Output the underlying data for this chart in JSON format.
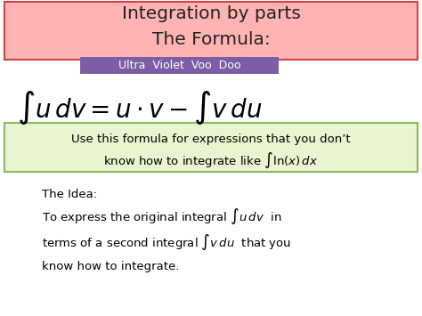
{
  "title_line1": "Integration by parts",
  "title_line2": "The Formula:",
  "title_bg_color": "#ffb3b3",
  "title_border_color": "#cc4444",
  "subtitle_text": "Ultra  Violet  Voo  Doo",
  "subtitle_bg_color": "#7b5ea7",
  "subtitle_text_color": "#ffffff",
  "formula_latex": "$\\int u\\, dv = u \\cdot v - \\int v\\, du$",
  "box_text_line1": "Use this formula for expressions that you don’t",
  "box_text_line2": "know how to integrate like ",
  "box_formula": "$\\int \\ln(x)\\, dx$",
  "box_bg_color": "#e8f5d0",
  "box_border_color": "#8aba5a",
  "idea_title": "The Idea:",
  "idea_line1": "To express the original integral $\\int u\\, dv$  in",
  "idea_line2": "terms of a second integral $\\int v\\, du$  that you",
  "idea_line3": "know how to integrate.",
  "bg_color": "#ffffff",
  "text_color": "#000000",
  "figsize": [
    4.74,
    3.55
  ],
  "dpi": 100
}
